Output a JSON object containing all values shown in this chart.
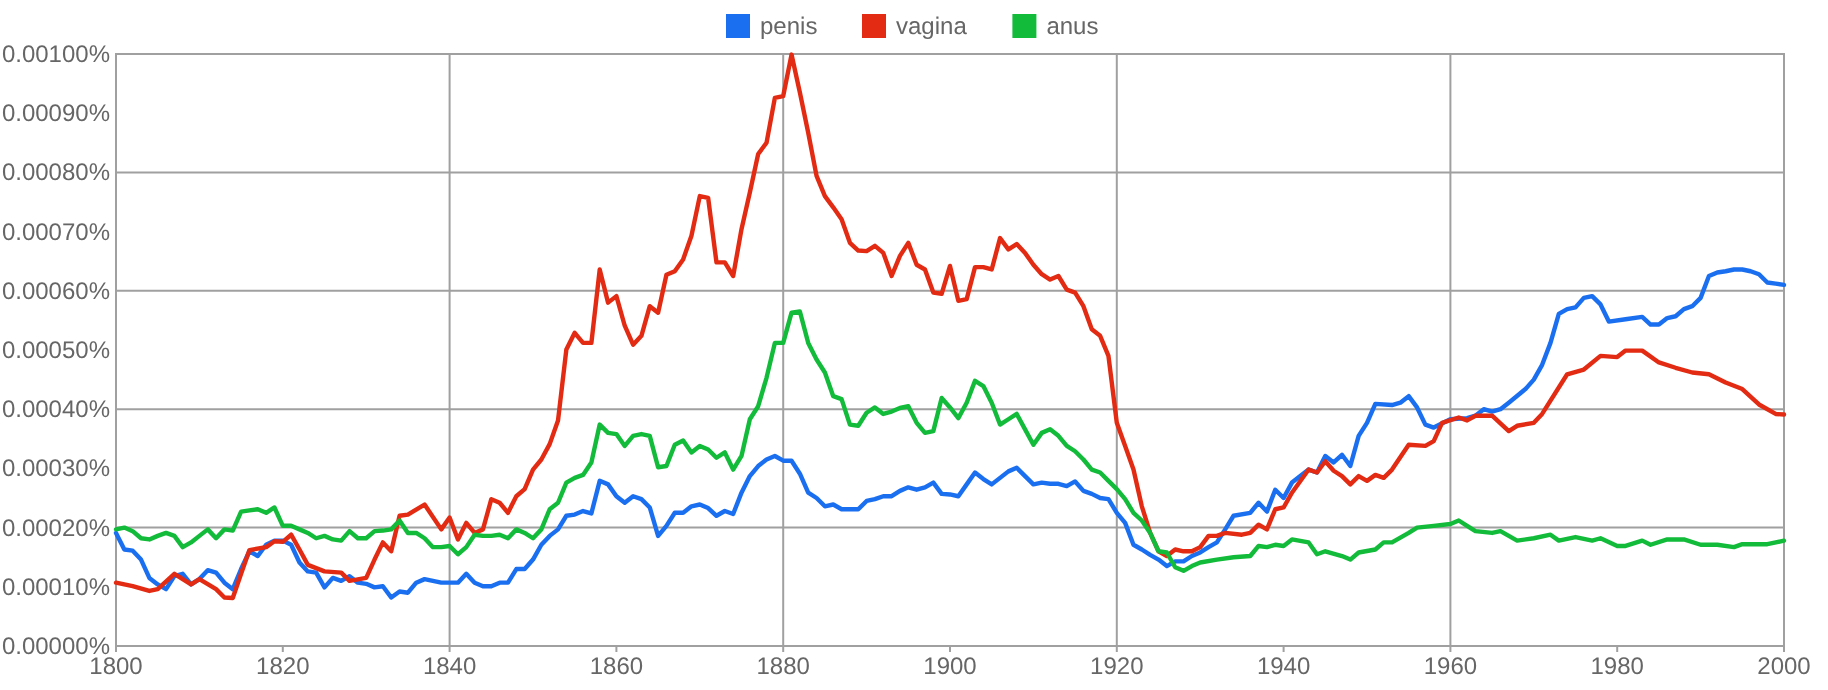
{
  "chart_data": {
    "type": "line",
    "legend": "top",
    "grid": true,
    "marker": "none",
    "line_style": "solid",
    "xlim": [
      1800,
      2000
    ],
    "xticks": [
      1800,
      1820,
      1840,
      1860,
      1880,
      1900,
      1920,
      1940,
      1960,
      1980,
      2000
    ],
    "ylim": [
      0,
      0.001
    ],
    "yticks": [
      {
        "value": 0,
        "label": "0.00000%"
      },
      {
        "value": 0.0001,
        "label": "0.00010%"
      },
      {
        "value": 0.0002,
        "label": "0.00020%"
      },
      {
        "value": 0.0003,
        "label": "0.00030%"
      },
      {
        "value": 0.0004,
        "label": "0.00040%"
      },
      {
        "value": 0.0005,
        "label": "0.00050%"
      },
      {
        "value": 0.0006,
        "label": "0.00060%"
      },
      {
        "value": 0.0007,
        "label": "0.00070%"
      },
      {
        "value": 0.0008,
        "label": "0.00080%"
      },
      {
        "value": 0.0009,
        "label": "0.00090%"
      },
      {
        "value": 0.001,
        "label": "0.00100%"
      }
    ],
    "series": [
      {
        "name": "penis",
        "color": "#1a6ff0",
        "x": [
          1800,
          1801,
          1802,
          1803,
          1804,
          1805,
          1806,
          1807,
          1808,
          1809,
          1810,
          1811,
          1812,
          1813,
          1814,
          1815,
          1816,
          1817,
          1818,
          1819,
          1820,
          1821,
          1822,
          1823,
          1824,
          1825,
          1826,
          1827,
          1828,
          1829,
          1830,
          1831,
          1832,
          1833,
          1834,
          1835,
          1836,
          1837,
          1838,
          1839,
          1840,
          1841,
          1842,
          1843,
          1844,
          1845,
          1846,
          1847,
          1848,
          1849,
          1850,
          1851,
          1852,
          1853,
          1854,
          1855,
          1856,
          1857,
          1858,
          1859,
          1860,
          1861,
          1862,
          1863,
          1864,
          1865,
          1866,
          1867,
          1868,
          1869,
          1870,
          1871,
          1872,
          1873,
          1874,
          1875,
          1876,
          1877,
          1878,
          1879,
          1880,
          1881,
          1882,
          1883,
          1884,
          1885,
          1886,
          1887,
          1889,
          1890,
          1891,
          1892,
          1893,
          1894,
          1895,
          1896,
          1897,
          1898,
          1899,
          1900,
          1901,
          1902,
          1903,
          1904,
          1905,
          1906,
          1907,
          1908,
          1909,
          1910,
          1911,
          1912,
          1913,
          1914,
          1915,
          1916,
          1917,
          1918,
          1919,
          1920,
          1921,
          1922,
          1923,
          1924,
          1925,
          1926,
          1927,
          1928,
          1929,
          1930,
          1931,
          1932,
          1933,
          1934,
          1936,
          1937,
          1938,
          1939,
          1940,
          1941,
          1943,
          1944,
          1945,
          1946,
          1947,
          1948,
          1949,
          1950,
          1951,
          1953,
          1954,
          1955,
          1956,
          1957,
          1958,
          1960,
          1962,
          1963,
          1964,
          1965,
          1966,
          1967,
          1969,
          1970,
          1971,
          1972,
          1973,
          1974,
          1975,
          1976,
          1977,
          1978,
          1979,
          1981,
          1983,
          1984,
          1985,
          1986,
          1987,
          1988,
          1989,
          1990,
          1991,
          1992,
          1993,
          1994,
          1995,
          1996,
          1997,
          1998,
          1999,
          2000
        ],
        "values": [
          0.000191,
          0.000163,
          0.000161,
          0.000146,
          0.000115,
          0.000104,
          9.6e-05,
          0.000118,
          0.000122,
          0.000104,
          0.000113,
          0.000128,
          0.000124,
          0.000107,
          9.6e-05,
          0.00013,
          0.00016,
          0.000152,
          0.000171,
          0.000178,
          0.000178,
          0.000171,
          0.000141,
          0.000126,
          0.000124,
          9.9e-05,
          0.000115,
          0.00011,
          0.000118,
          0.000107,
          0.000105,
          9.9e-05,
          0.000101,
          8.2e-05,
          9.2e-05,
          9e-05,
          0.000107,
          0.000113,
          0.00011,
          0.000107,
          0.000107,
          0.000107,
          0.000122,
          0.000107,
          0.000101,
          0.000101,
          0.000107,
          0.000107,
          0.00013,
          0.00013,
          0.000146,
          0.000171,
          0.000186,
          0.000197,
          0.00022,
          0.000222,
          0.000228,
          0.000224,
          0.000279,
          0.000273,
          0.000253,
          0.000242,
          0.000253,
          0.000248,
          0.000234,
          0.000186,
          0.000203,
          0.000225,
          0.000225,
          0.000236,
          0.000239,
          0.000233,
          0.00022,
          0.000228,
          0.000223,
          0.000259,
          0.000287,
          0.000304,
          0.000315,
          0.000321,
          0.000313,
          0.000313,
          0.000291,
          0.000259,
          0.00025,
          0.000236,
          0.000239,
          0.000231,
          0.000231,
          0.000245,
          0.000248,
          0.000253,
          0.000253,
          0.000262,
          0.000268,
          0.000264,
          0.000268,
          0.000276,
          0.000257,
          0.000256,
          0.000253,
          0.000273,
          0.000293,
          0.000282,
          0.000273,
          0.000284,
          0.000295,
          0.000301,
          0.000287,
          0.000273,
          0.000276,
          0.000274,
          0.000274,
          0.00027,
          0.000278,
          0.000262,
          0.000257,
          0.00025,
          0.000248,
          0.000225,
          0.000208,
          0.000171,
          0.000163,
          0.000154,
          0.000146,
          0.000135,
          0.000143,
          0.000143,
          0.000152,
          0.000158,
          0.000167,
          0.000175,
          0.000197,
          0.00022,
          0.000225,
          0.000242,
          0.000227,
          0.000264,
          0.00025,
          0.000276,
          0.000298,
          0.000293,
          0.000321,
          0.00031,
          0.000323,
          0.000304,
          0.000355,
          0.000377,
          0.000409,
          0.000407,
          0.000411,
          0.000422,
          0.000403,
          0.000374,
          0.000369,
          0.000383,
          0.000385,
          0.000389,
          0.0004,
          0.000396,
          0.0004,
          0.000411,
          0.000434,
          0.00045,
          0.000475,
          0.000512,
          0.000561,
          0.000569,
          0.000572,
          0.000588,
          0.000591,
          0.000577,
          0.000548,
          0.000552,
          0.000556,
          0.000543,
          0.000543,
          0.000554,
          0.000557,
          0.000569,
          0.000574,
          0.000588,
          0.000625,
          0.000631,
          0.000633,
          0.000636,
          0.000636,
          0.000633,
          0.000628,
          0.000614,
          0.000612,
          0.00061
        ]
      },
      {
        "name": "vagina",
        "color": "#e22b12",
        "x": [
          1800,
          1802,
          1804,
          1805,
          1807,
          1809,
          1810,
          1812,
          1813,
          1814,
          1815,
          1816,
          1818,
          1819,
          1820,
          1821,
          1822,
          1823,
          1825,
          1827,
          1828,
          1830,
          1831,
          1832,
          1833,
          1834,
          1835,
          1837,
          1839,
          1840,
          1841,
          1842,
          1843,
          1844,
          1845,
          1846,
          1847,
          1848,
          1849,
          1850,
          1851,
          1852,
          1853,
          1854,
          1855,
          1856,
          1857,
          1858,
          1859,
          1860,
          1861,
          1862,
          1863,
          1864,
          1865,
          1866,
          1867,
          1868,
          1869,
          1870,
          1871,
          1872,
          1873,
          1874,
          1875,
          1876,
          1877,
          1878,
          1879,
          1880,
          1881,
          1882,
          1883,
          1884,
          1885,
          1886,
          1887,
          1888,
          1889,
          1890,
          1891,
          1892,
          1893,
          1894,
          1895,
          1896,
          1897,
          1898,
          1899,
          1900,
          1901,
          1902,
          1903,
          1904,
          1905,
          1906,
          1907,
          1908,
          1909,
          1910,
          1911,
          1912,
          1913,
          1914,
          1915,
          1916,
          1917,
          1918,
          1919,
          1920,
          1921,
          1922,
          1923,
          1924,
          1925,
          1926,
          1927,
          1928,
          1929,
          1930,
          1931,
          1932,
          1933,
          1935,
          1936,
          1937,
          1938,
          1939,
          1940,
          1941,
          1943,
          1944,
          1945,
          1946,
          1947,
          1948,
          1949,
          1950,
          1951,
          1952,
          1953,
          1955,
          1957,
          1958,
          1959,
          1961,
          1962,
          1963,
          1965,
          1967,
          1968,
          1970,
          1971,
          1974,
          1976,
          1978,
          1980,
          1981,
          1983,
          1985,
          1987,
          1989,
          1991,
          1993,
          1995,
          1997,
          1999,
          2000
        ],
        "values": [
          0.000107,
          0.000101,
          9.3e-05,
          9.6e-05,
          0.000122,
          0.000104,
          0.000113,
          9.6e-05,
          8.2e-05,
          8.1e-05,
          0.000122,
          0.000162,
          0.000167,
          0.000177,
          0.000176,
          0.000188,
          0.000163,
          0.000137,
          0.000126,
          0.000124,
          0.00011,
          0.000115,
          0.000146,
          0.000175,
          0.00016,
          0.00022,
          0.000222,
          0.000239,
          0.000197,
          0.000217,
          0.00018,
          0.000208,
          0.000191,
          0.000197,
          0.000248,
          0.000242,
          0.000225,
          0.000253,
          0.000265,
          0.000298,
          0.000315,
          0.000341,
          0.000381,
          0.000501,
          0.000529,
          0.000512,
          0.000512,
          0.000636,
          0.00058,
          0.000591,
          0.000541,
          0.000509,
          0.000524,
          0.000574,
          0.000563,
          0.000627,
          0.000633,
          0.000653,
          0.000693,
          0.00076,
          0.000757,
          0.000648,
          0.000648,
          0.000625,
          0.000704,
          0.000766,
          0.000831,
          0.00085,
          0.000926,
          0.000929,
          0.000999,
          0.000935,
          0.000867,
          0.000794,
          0.00076,
          0.000741,
          0.000721,
          0.000681,
          0.000668,
          0.000667,
          0.000676,
          0.000664,
          0.000625,
          0.000659,
          0.000681,
          0.000644,
          0.000636,
          0.000597,
          0.000595,
          0.000642,
          0.000583,
          0.000586,
          0.00064,
          0.00064,
          0.000636,
          0.000689,
          0.00067,
          0.000679,
          0.000664,
          0.000644,
          0.000628,
          0.000619,
          0.000625,
          0.000602,
          0.000597,
          0.000574,
          0.000535,
          0.000524,
          0.00049,
          0.000377,
          0.000338,
          0.000298,
          0.000236,
          0.000191,
          0.00016,
          0.000152,
          0.000163,
          0.00016,
          0.00016,
          0.000167,
          0.000186,
          0.000186,
          0.000191,
          0.000188,
          0.000191,
          0.000205,
          0.000197,
          0.000231,
          0.000234,
          0.000259,
          0.000298,
          0.000293,
          0.000312,
          0.000296,
          0.000287,
          0.000273,
          0.000287,
          0.000279,
          0.000289,
          0.000284,
          0.000298,
          0.00034,
          0.000338,
          0.000346,
          0.000377,
          0.000386,
          0.000381,
          0.000389,
          0.000389,
          0.000363,
          0.000372,
          0.000377,
          0.000392,
          0.000459,
          0.000467,
          0.00049,
          0.000488,
          0.000499,
          0.000499,
          0.000479,
          0.00047,
          0.000462,
          0.000459,
          0.000445,
          0.000434,
          0.000408,
          0.000392,
          0.000391
        ]
      },
      {
        "name": "anus",
        "color": "#12bb3a",
        "x": [
          1800,
          1801,
          1802,
          1803,
          1804,
          1805,
          1806,
          1807,
          1808,
          1809,
          1810,
          1811,
          1812,
          1813,
          1814,
          1815,
          1816,
          1817,
          1818,
          1819,
          1820,
          1821,
          1822,
          1823,
          1824,
          1825,
          1826,
          1827,
          1828,
          1829,
          1830,
          1831,
          1832,
          1833,
          1834,
          1835,
          1836,
          1837,
          1838,
          1839,
          1840,
          1841,
          1842,
          1843,
          1844,
          1845,
          1846,
          1847,
          1848,
          1849,
          1850,
          1851,
          1852,
          1853,
          1854,
          1855,
          1856,
          1857,
          1858,
          1859,
          1860,
          1861,
          1862,
          1863,
          1864,
          1865,
          1866,
          1867,
          1868,
          1869,
          1870,
          1871,
          1872,
          1873,
          1874,
          1875,
          1876,
          1877,
          1878,
          1879,
          1880,
          1881,
          1882,
          1883,
          1884,
          1885,
          1886,
          1887,
          1888,
          1889,
          1890,
          1891,
          1892,
          1893,
          1894,
          1895,
          1896,
          1897,
          1898,
          1899,
          1900,
          1901,
          1902,
          1903,
          1904,
          1905,
          1906,
          1907,
          1908,
          1909,
          1910,
          1911,
          1912,
          1913,
          1914,
          1915,
          1916,
          1917,
          1918,
          1919,
          1920,
          1921,
          1922,
          1923,
          1924,
          1925,
          1926,
          1927,
          1928,
          1929,
          1930,
          1932,
          1934,
          1936,
          1937,
          1938,
          1939,
          1940,
          1941,
          1943,
          1944,
          1945,
          1947,
          1948,
          1949,
          1951,
          1952,
          1953,
          1955,
          1956,
          1958,
          1960,
          1961,
          1962,
          1963,
          1965,
          1966,
          1968,
          1970,
          1972,
          1973,
          1975,
          1977,
          1978,
          1980,
          1981,
          1983,
          1984,
          1986,
          1988,
          1990,
          1992,
          1994,
          1995,
          1998,
          2000
        ],
        "values": [
          0.000197,
          0.0002,
          0.000194,
          0.000182,
          0.00018,
          0.000186,
          0.000191,
          0.000186,
          0.000167,
          0.000175,
          0.000186,
          0.000197,
          0.000182,
          0.000197,
          0.000195,
          0.000227,
          0.000229,
          0.000231,
          0.000225,
          0.000234,
          0.000203,
          0.000203,
          0.000197,
          0.000191,
          0.000182,
          0.000186,
          0.00018,
          0.000178,
          0.000194,
          0.000182,
          0.000182,
          0.000194,
          0.000195,
          0.000197,
          0.000212,
          0.000191,
          0.000191,
          0.000182,
          0.000167,
          0.000167,
          0.000169,
          0.000155,
          0.000167,
          0.000188,
          0.000186,
          0.000186,
          0.000188,
          0.000182,
          0.000197,
          0.000191,
          0.000182,
          0.000197,
          0.000231,
          0.000242,
          0.000276,
          0.000284,
          0.000289,
          0.00031,
          0.000374,
          0.00036,
          0.000358,
          0.000338,
          0.000355,
          0.000358,
          0.000355,
          0.000302,
          0.000304,
          0.00034,
          0.000347,
          0.000327,
          0.000338,
          0.000332,
          0.000318,
          0.000327,
          0.000298,
          0.000321,
          0.000383,
          0.000405,
          0.000453,
          0.000512,
          0.000512,
          0.000563,
          0.000565,
          0.000512,
          0.000484,
          0.000462,
          0.000422,
          0.000417,
          0.000374,
          0.000372,
          0.000394,
          0.000403,
          0.000392,
          0.000396,
          0.000402,
          0.000405,
          0.000377,
          0.00036,
          0.000363,
          0.000419,
          0.000403,
          0.000385,
          0.000411,
          0.000448,
          0.000439,
          0.000411,
          0.000374,
          0.000383,
          0.000392,
          0.000366,
          0.00034,
          0.00036,
          0.000366,
          0.000355,
          0.000338,
          0.000329,
          0.000315,
          0.000298,
          0.000293,
          0.000279,
          0.000265,
          0.000248,
          0.000225,
          0.000212,
          0.000191,
          0.00016,
          0.000158,
          0.000133,
          0.000127,
          0.000135,
          0.000141,
          0.000146,
          0.00015,
          0.000152,
          0.000169,
          0.000167,
          0.000171,
          0.000169,
          0.00018,
          0.000175,
          0.000155,
          0.00016,
          0.000152,
          0.000146,
          0.000158,
          0.000163,
          0.000175,
          0.000175,
          0.000191,
          0.0002,
          0.000203,
          0.000206,
          0.000212,
          0.000203,
          0.000194,
          0.000191,
          0.000194,
          0.000178,
          0.000182,
          0.000188,
          0.000178,
          0.000184,
          0.000178,
          0.000182,
          0.000169,
          0.000169,
          0.000178,
          0.000171,
          0.00018,
          0.00018,
          0.000171,
          0.000171,
          0.000167,
          0.000172,
          0.000172,
          0.000178
        ]
      }
    ]
  }
}
